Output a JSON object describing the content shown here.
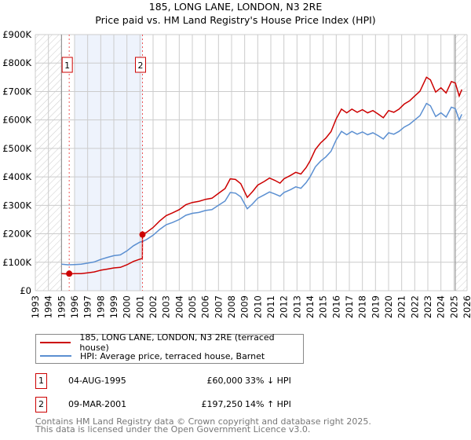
{
  "chart_data": {
    "type": "line",
    "title": "185, LONG LANE, LONDON, N3 2RE",
    "subtitle": "Price paid vs. HM Land Registry's House Price Index (HPI)",
    "xlim": [
      1993,
      2026
    ],
    "ylim": [
      0,
      900000
    ],
    "x_ticks": [
      "1993",
      "1994",
      "1995",
      "1996",
      "1997",
      "1998",
      "1999",
      "2000",
      "2001",
      "2002",
      "2003",
      "2004",
      "2005",
      "2006",
      "2007",
      "2008",
      "2009",
      "2010",
      "2011",
      "2012",
      "2013",
      "2014",
      "2015",
      "2016",
      "2017",
      "2018",
      "2019",
      "2020",
      "2021",
      "2022",
      "2023",
      "2024",
      "2025",
      "2026"
    ],
    "y_ticks": [
      {
        "v": 0,
        "label": "£0"
      },
      {
        "v": 100000,
        "label": "£100K"
      },
      {
        "v": 200000,
        "label": "£200K"
      },
      {
        "v": 300000,
        "label": "£300K"
      },
      {
        "v": 400000,
        "label": "£400K"
      },
      {
        "v": 500000,
        "label": "£500K"
      },
      {
        "v": 600000,
        "label": "£600K"
      },
      {
        "v": 700000,
        "label": "£700K"
      },
      {
        "v": 800000,
        "label": "£800K"
      },
      {
        "v": 900000,
        "label": "£900K"
      }
    ],
    "grid": true,
    "hatched_ranges": [
      [
        1993,
        1995
      ],
      [
        2025.1,
        2026
      ]
    ],
    "shaded_range": [
      1996,
      2001.19
    ],
    "series": [
      {
        "name": "185, LONG LANE, LONDON, N3 2RE (terraced house)",
        "color": "#cc0000",
        "x": [
          1995,
          1995.5,
          1996,
          1996.5,
          1997,
          1997.5,
          1998,
          1998.5,
          1999,
          1999.5,
          2000,
          2000.5,
          2001,
          2001.18,
          2001.19,
          2001.5,
          2002,
          2002.5,
          2003,
          2003.5,
          2004,
          2004.5,
          2005,
          2005.5,
          2006,
          2006.5,
          2007,
          2007.5,
          2007.9,
          2008.3,
          2008.7,
          2009.2,
          2009.6,
          2010,
          2010.5,
          2010.9,
          2011.3,
          2011.7,
          2012,
          2012.5,
          2012.9,
          2013.3,
          2013.7,
          2014,
          2014.4,
          2014.8,
          2015.2,
          2015.6,
          2016,
          2016.4,
          2016.8,
          2017.2,
          2017.6,
          2018,
          2018.4,
          2018.8,
          2019.2,
          2019.6,
          2020,
          2020.4,
          2020.8,
          2021.2,
          2021.6,
          2022,
          2022.4,
          2022.9,
          2023.2,
          2023.6,
          2024,
          2024.4,
          2024.8,
          2025.1,
          2025.4,
          2025.6
        ],
        "values": [
          60000,
          59000,
          60000,
          60000,
          63000,
          66000,
          72000,
          76000,
          80000,
          82000,
          91000,
          103000,
          111000,
          113000,
          197250,
          205000,
          222000,
          245000,
          264000,
          274000,
          285000,
          302000,
          310000,
          314000,
          321000,
          325000,
          342000,
          359000,
          393000,
          391000,
          376000,
          328000,
          348000,
          371000,
          384000,
          396000,
          388000,
          378000,
          393000,
          405000,
          416000,
          410000,
          433000,
          456000,
          496000,
          519000,
          536000,
          559000,
          604000,
          638000,
          625000,
          638000,
          627000,
          636000,
          625000,
          633000,
          621000,
          608000,
          633000,
          627000,
          638000,
          656000,
          667000,
          684000,
          701000,
          750000,
          741000,
          698000,
          713000,
          695000,
          735000,
          730000,
          684000,
          707000
        ]
      },
      {
        "name": "HPI: Average price, terraced house, Barnet",
        "color": "#5b8fd1",
        "x": [
          1995,
          1995.5,
          1996,
          1996.5,
          1997,
          1997.5,
          1998,
          1998.5,
          1999,
          1999.5,
          2000,
          2000.5,
          2001,
          2001.2,
          2001.5,
          2002,
          2002.5,
          2003,
          2003.5,
          2004,
          2004.5,
          2005,
          2005.5,
          2006,
          2006.5,
          2007,
          2007.5,
          2007.9,
          2008.3,
          2008.7,
          2009.2,
          2009.6,
          2010,
          2010.5,
          2010.9,
          2011.3,
          2011.7,
          2012,
          2012.5,
          2012.9,
          2013.3,
          2013.7,
          2014,
          2014.4,
          2014.8,
          2015.2,
          2015.6,
          2016,
          2016.4,
          2016.8,
          2017.2,
          2017.6,
          2018,
          2018.4,
          2018.8,
          2019.2,
          2019.6,
          2020,
          2020.4,
          2020.8,
          2021.2,
          2021.6,
          2022,
          2022.4,
          2022.9,
          2023.2,
          2023.6,
          2024,
          2024.4,
          2024.8,
          2025.1,
          2025.4,
          2025.6
        ],
        "values": [
          93000,
          91000,
          92000,
          93000,
          97000,
          101000,
          110000,
          117000,
          123000,
          126000,
          140000,
          158000,
          171000,
          173000,
          180000,
          195000,
          215000,
          232000,
          240000,
          250000,
          265000,
          272000,
          275000,
          282000,
          285000,
          300000,
          315000,
          345000,
          343000,
          330000,
          288000,
          305000,
          325000,
          337000,
          347000,
          340000,
          332000,
          345000,
          355000,
          365000,
          360000,
          380000,
          400000,
          435000,
          455000,
          470000,
          490000,
          530000,
          560000,
          548000,
          560000,
          550000,
          558000,
          548000,
          555000,
          545000,
          533000,
          555000,
          550000,
          560000,
          575000,
          585000,
          600000,
          615000,
          658000,
          650000,
          612000,
          625000,
          610000,
          645000,
          640000,
          600000,
          620000
        ]
      }
    ],
    "sales": [
      {
        "label": "1",
        "x": 1995.59,
        "value": 60000
      },
      {
        "label": "2",
        "x": 2001.19,
        "value": 197250
      }
    ]
  },
  "legend": {
    "property": "185, LONG LANE, LONDON, N3 2RE (terraced house)",
    "hpi": "HPI: Average price, terraced house, Barnet"
  },
  "transactions": [
    {
      "num": "1",
      "date": "04-AUG-1995",
      "price": "£60,000",
      "hpi": "33% ↓ HPI"
    },
    {
      "num": "2",
      "date": "09-MAR-2001",
      "price": "£197,250",
      "hpi": "14% ↑ HPI"
    }
  ],
  "footer": {
    "line1": "Contains HM Land Registry data © Crown copyright and database right 2025.",
    "line2": "This data is licensed under the Open Government Licence v3.0."
  }
}
